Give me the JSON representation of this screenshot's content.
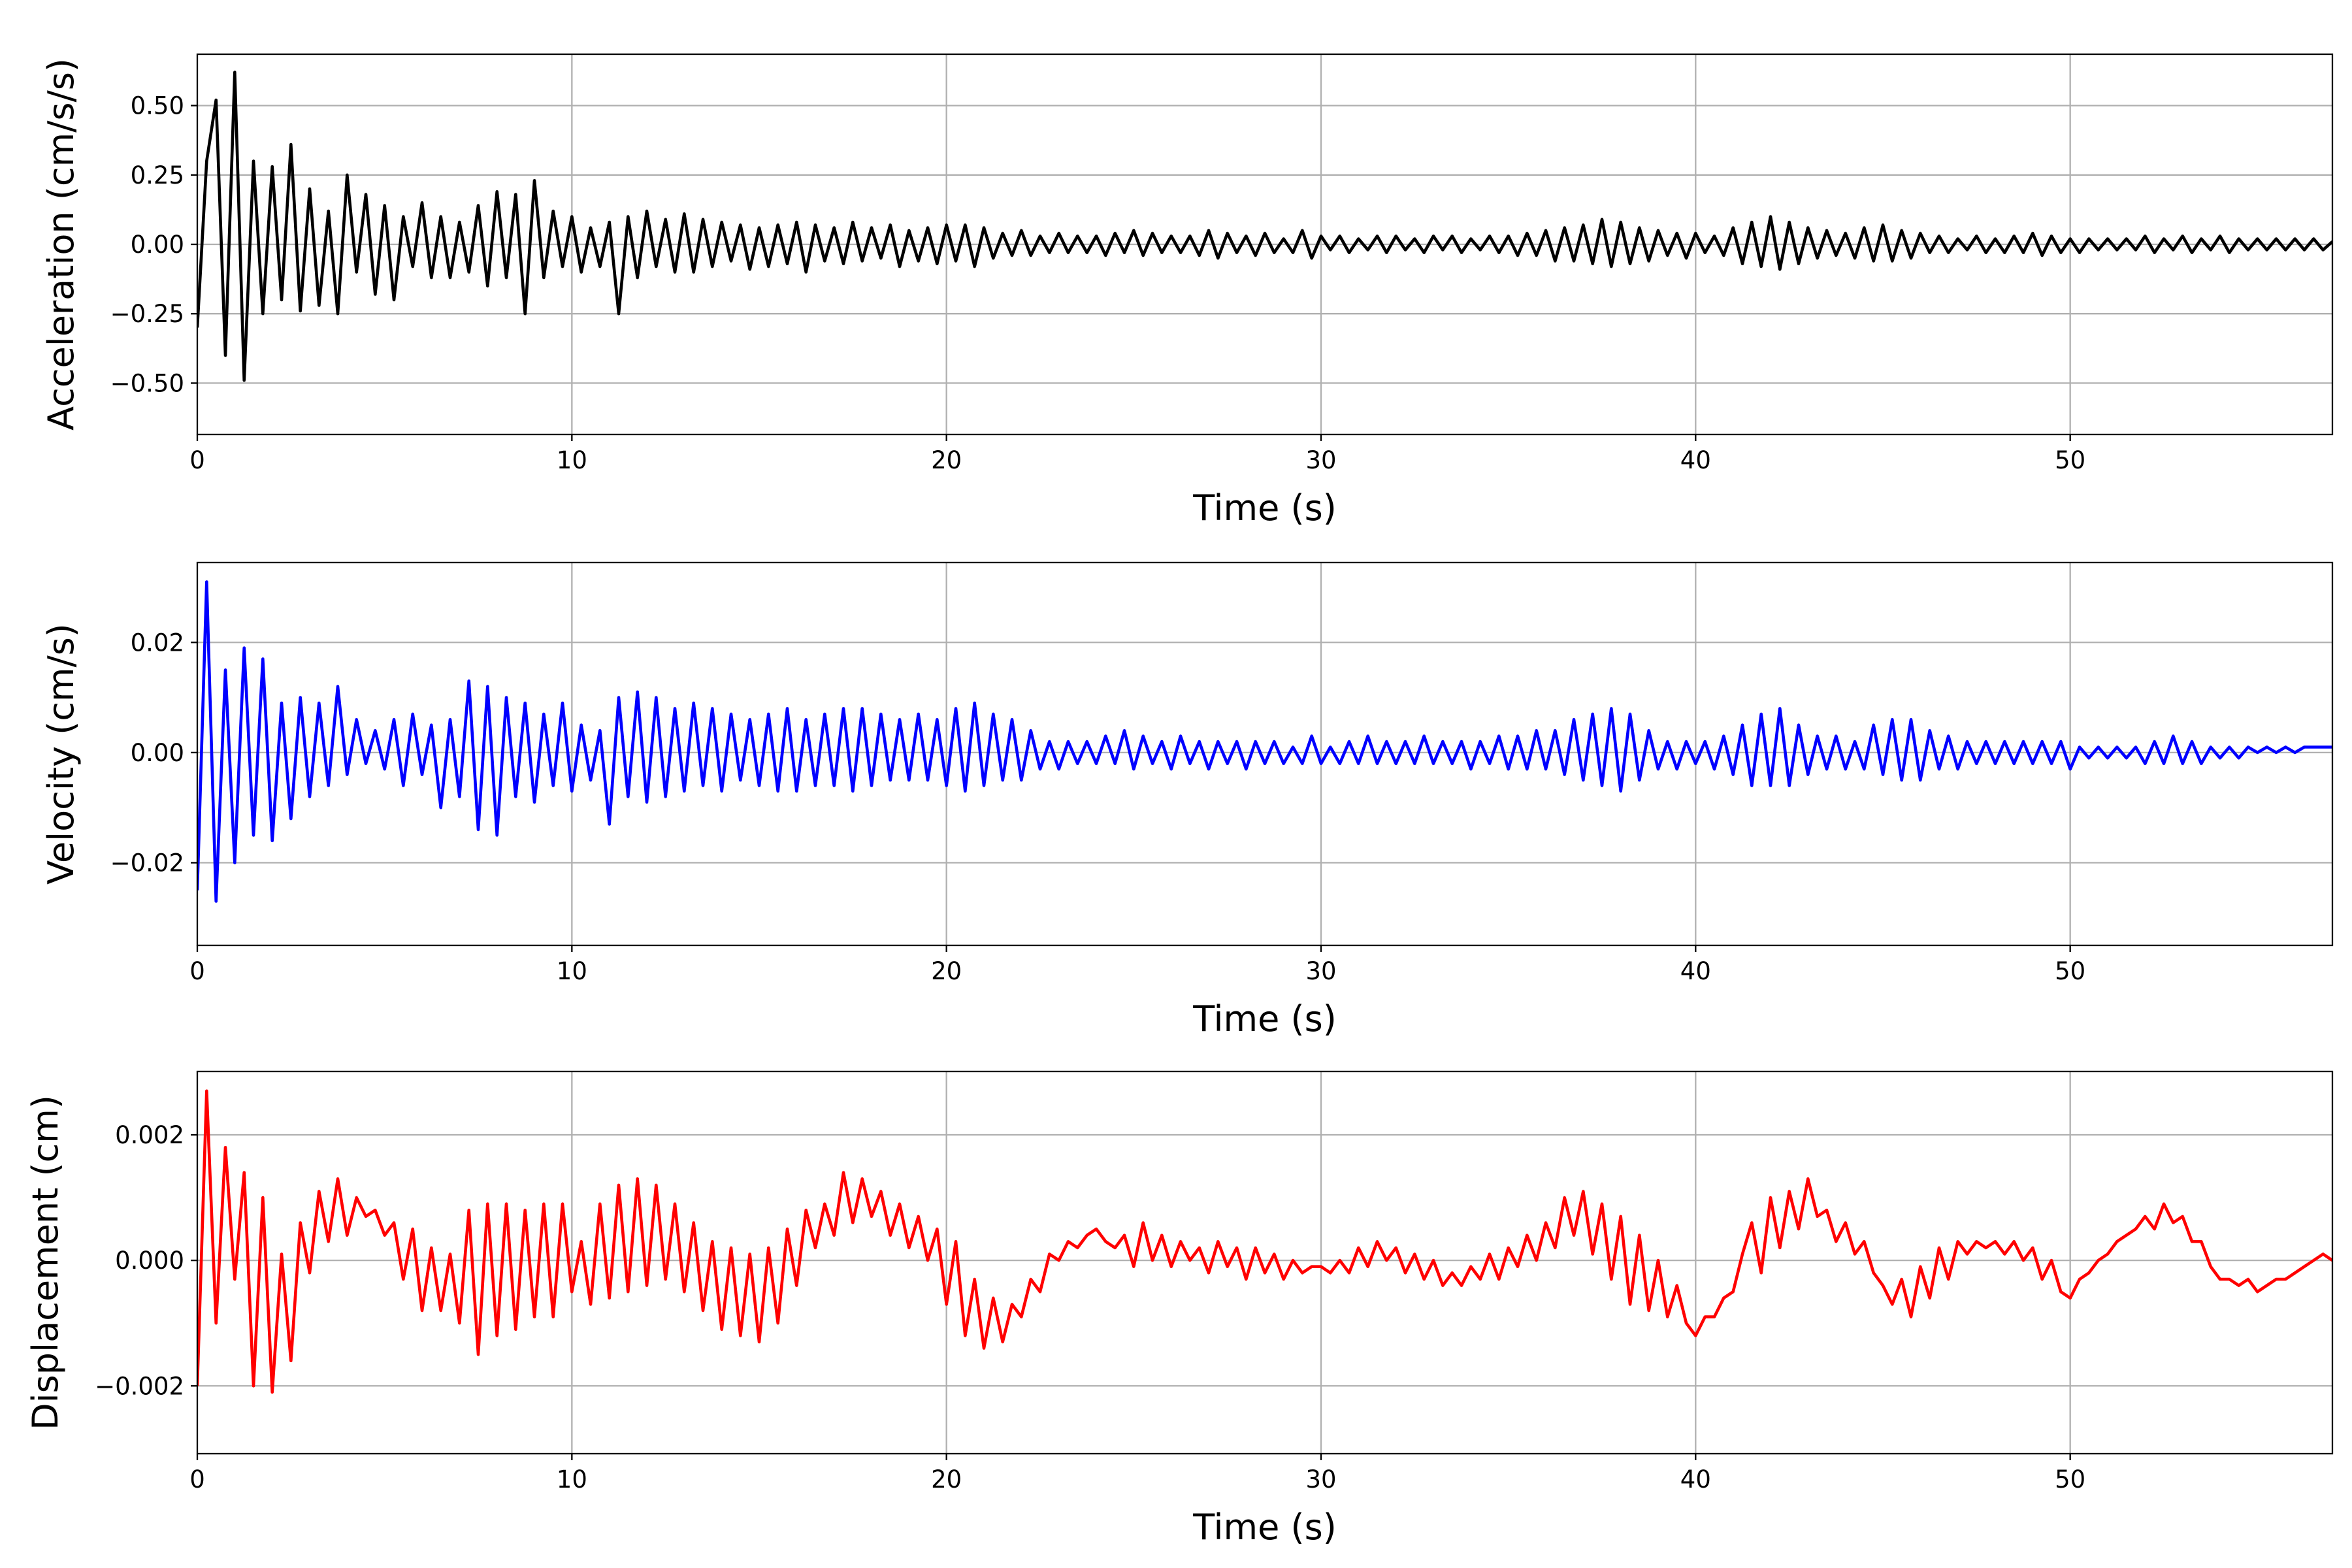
{
  "chart_data": [
    {
      "type": "line",
      "name": "acceleration",
      "xlabel": "Time (s)",
      "ylabel": "Acceleration (cm/s/s)",
      "xlim": [
        0,
        57
      ],
      "ylim": [
        -0.685,
        0.685
      ],
      "grid": true,
      "color": "#000000",
      "xticks": [
        0,
        10,
        20,
        30,
        40,
        50
      ],
      "xtick_labels": [
        "0",
        "10",
        "20",
        "30",
        "40",
        "50"
      ],
      "yticks": [
        -0.5,
        -0.25,
        0,
        0.25,
        0.5
      ],
      "ytick_labels": [
        "−0.50",
        "−0.25",
        "0.00",
        "0.25",
        "0.50"
      ],
      "dt": 0.25,
      "values": [
        -0.3,
        0.3,
        0.52,
        -0.4,
        0.62,
        -0.49,
        0.3,
        -0.25,
        0.28,
        -0.2,
        0.36,
        -0.24,
        0.2,
        -0.22,
        0.12,
        -0.25,
        0.25,
        -0.1,
        0.18,
        -0.18,
        0.14,
        -0.2,
        0.1,
        -0.08,
        0.15,
        -0.12,
        0.1,
        -0.12,
        0.08,
        -0.1,
        0.14,
        -0.15,
        0.19,
        -0.12,
        0.18,
        -0.25,
        0.23,
        -0.12,
        0.12,
        -0.08,
        0.1,
        -0.1,
        0.06,
        -0.08,
        0.08,
        -0.25,
        0.1,
        -0.12,
        0.12,
        -0.08,
        0.09,
        -0.1,
        0.11,
        -0.1,
        0.09,
        -0.08,
        0.08,
        -0.06,
        0.07,
        -0.09,
        0.06,
        -0.08,
        0.07,
        -0.07,
        0.08,
        -0.1,
        0.07,
        -0.06,
        0.06,
        -0.07,
        0.08,
        -0.06,
        0.06,
        -0.05,
        0.07,
        -0.08,
        0.05,
        -0.06,
        0.06,
        -0.07,
        0.07,
        -0.06,
        0.07,
        -0.08,
        0.06,
        -0.05,
        0.04,
        -0.04,
        0.05,
        -0.04,
        0.03,
        -0.03,
        0.04,
        -0.03,
        0.03,
        -0.03,
        0.03,
        -0.04,
        0.04,
        -0.03,
        0.05,
        -0.04,
        0.04,
        -0.03,
        0.03,
        -0.03,
        0.03,
        -0.04,
        0.05,
        -0.05,
        0.04,
        -0.03,
        0.03,
        -0.04,
        0.04,
        -0.03,
        0.02,
        -0.03,
        0.05,
        -0.05,
        0.03,
        -0.02,
        0.03,
        -0.03,
        0.02,
        -0.02,
        0.03,
        -0.03,
        0.03,
        -0.02,
        0.02,
        -0.03,
        0.03,
        -0.02,
        0.03,
        -0.03,
        0.02,
        -0.02,
        0.03,
        -0.03,
        0.03,
        -0.04,
        0.04,
        -0.04,
        0.05,
        -0.06,
        0.06,
        -0.06,
        0.07,
        -0.07,
        0.09,
        -0.08,
        0.08,
        -0.07,
        0.06,
        -0.06,
        0.05,
        -0.04,
        0.04,
        -0.05,
        0.04,
        -0.03,
        0.03,
        -0.04,
        0.06,
        -0.07,
        0.08,
        -0.08,
        0.1,
        -0.09,
        0.08,
        -0.07,
        0.06,
        -0.05,
        0.05,
        -0.04,
        0.04,
        -0.05,
        0.06,
        -0.06,
        0.07,
        -0.06,
        0.05,
        -0.05,
        0.04,
        -0.03,
        0.03,
        -0.03,
        0.02,
        -0.02,
        0.03,
        -0.03,
        0.02,
        -0.03,
        0.03,
        -0.03,
        0.04,
        -0.04,
        0.03,
        -0.03,
        0.02,
        -0.03,
        0.02,
        -0.02,
        0.02,
        -0.02,
        0.02,
        -0.02,
        0.03,
        -0.03,
        0.02,
        -0.02,
        0.03,
        -0.03,
        0.02,
        -0.02,
        0.03,
        -0.03,
        0.02,
        -0.02,
        0.02,
        -0.02,
        0.02,
        -0.02,
        0.02,
        -0.02,
        0.02,
        -0.02,
        0.01
      ]
    },
    {
      "type": "line",
      "name": "velocity",
      "xlabel": "Time (s)",
      "ylabel": "Velocity (cm/s)",
      "xlim": [
        0,
        57
      ],
      "ylim": [
        -0.035,
        0.0345
      ],
      "grid": true,
      "color": "#0000ff",
      "xticks": [
        0,
        10,
        20,
        30,
        40,
        50
      ],
      "xtick_labels": [
        "0",
        "10",
        "20",
        "30",
        "40",
        "50"
      ],
      "yticks": [
        -0.02,
        0,
        0.02
      ],
      "ytick_labels": [
        "−0.02",
        "0.00",
        "0.02"
      ],
      "dt": 0.25,
      "values": [
        -0.025,
        0.031,
        -0.027,
        0.015,
        -0.02,
        0.019,
        -0.015,
        0.017,
        -0.016,
        0.009,
        -0.012,
        0.01,
        -0.008,
        0.009,
        -0.006,
        0.012,
        -0.004,
        0.006,
        -0.002,
        0.004,
        -0.003,
        0.006,
        -0.006,
        0.007,
        -0.004,
        0.005,
        -0.01,
        0.006,
        -0.008,
        0.013,
        -0.014,
        0.012,
        -0.015,
        0.01,
        -0.008,
        0.009,
        -0.009,
        0.007,
        -0.006,
        0.009,
        -0.007,
        0.005,
        -0.005,
        0.004,
        -0.013,
        0.01,
        -0.008,
        0.011,
        -0.009,
        0.01,
        -0.008,
        0.008,
        -0.007,
        0.009,
        -0.006,
        0.008,
        -0.007,
        0.007,
        -0.005,
        0.006,
        -0.006,
        0.007,
        -0.007,
        0.008,
        -0.007,
        0.006,
        -0.006,
        0.007,
        -0.006,
        0.008,
        -0.007,
        0.008,
        -0.006,
        0.007,
        -0.005,
        0.006,
        -0.005,
        0.007,
        -0.005,
        0.006,
        -0.006,
        0.008,
        -0.007,
        0.009,
        -0.006,
        0.007,
        -0.005,
        0.006,
        -0.005,
        0.004,
        -0.003,
        0.002,
        -0.003,
        0.002,
        -0.002,
        0.002,
        -0.002,
        0.003,
        -0.002,
        0.004,
        -0.003,
        0.003,
        -0.002,
        0.002,
        -0.003,
        0.003,
        -0.002,
        0.002,
        -0.003,
        0.002,
        -0.002,
        0.002,
        -0.003,
        0.002,
        -0.002,
        0.002,
        -0.002,
        0.001,
        -0.002,
        0.003,
        -0.002,
        0.001,
        -0.002,
        0.002,
        -0.002,
        0.003,
        -0.002,
        0.002,
        -0.002,
        0.002,
        -0.002,
        0.003,
        -0.002,
        0.002,
        -0.002,
        0.002,
        -0.003,
        0.002,
        -0.002,
        0.003,
        -0.003,
        0.003,
        -0.003,
        0.004,
        -0.003,
        0.004,
        -0.004,
        0.006,
        -0.005,
        0.007,
        -0.006,
        0.008,
        -0.007,
        0.007,
        -0.005,
        0.004,
        -0.003,
        0.002,
        -0.003,
        0.002,
        -0.002,
        0.002,
        -0.003,
        0.003,
        -0.004,
        0.005,
        -0.006,
        0.007,
        -0.006,
        0.008,
        -0.006,
        0.005,
        -0.004,
        0.003,
        -0.003,
        0.003,
        -0.003,
        0.002,
        -0.003,
        0.005,
        -0.004,
        0.006,
        -0.005,
        0.006,
        -0.005,
        0.004,
        -0.003,
        0.003,
        -0.003,
        0.002,
        -0.002,
        0.002,
        -0.002,
        0.002,
        -0.002,
        0.002,
        -0.002,
        0.002,
        -0.002,
        0.002,
        -0.003,
        0.001,
        -0.001,
        0.001,
        -0.001,
        0.001,
        -0.001,
        0.001,
        -0.002,
        0.002,
        -0.002,
        0.003,
        -0.002,
        0.002,
        -0.002,
        0.001,
        -0.001,
        0.001,
        -0.001,
        0.001,
        0.0,
        0.001,
        0.0,
        0.001,
        0.0,
        0.001,
        0.001,
        0.001,
        0.001
      ]
    },
    {
      "type": "line",
      "name": "displacement",
      "xlabel": "Time (s)",
      "ylabel": "Displacement (cm)",
      "xlim": [
        0,
        57
      ],
      "ylim": [
        -0.00308,
        0.00301
      ],
      "grid": true,
      "color": "#ff0000",
      "xticks": [
        0,
        10,
        20,
        30,
        40,
        50
      ],
      "xtick_labels": [
        "0",
        "10",
        "20",
        "30",
        "40",
        "50"
      ],
      "yticks": [
        -0.002,
        0,
        0.002
      ],
      "ytick_labels": [
        "−0.002",
        "0.000",
        "0.002"
      ],
      "dt": 0.25,
      "values": [
        -0.002,
        0.0027,
        -0.001,
        0.0018,
        -0.0003,
        0.0014,
        -0.002,
        0.001,
        -0.0021,
        0.0001,
        -0.0016,
        0.0006,
        -0.0002,
        0.0011,
        0.0003,
        0.0013,
        0.0004,
        0.001,
        0.0007,
        0.0008,
        0.0004,
        0.0006,
        -0.0003,
        0.0005,
        -0.0008,
        0.0002,
        -0.0008,
        0.0001,
        -0.001,
        0.0008,
        -0.0015,
        0.0009,
        -0.0012,
        0.0009,
        -0.0011,
        0.0008,
        -0.0009,
        0.0009,
        -0.0009,
        0.0009,
        -0.0005,
        0.0003,
        -0.0007,
        0.0009,
        -0.0006,
        0.0012,
        -0.0005,
        0.0013,
        -0.0004,
        0.0012,
        -0.0003,
        0.0009,
        -0.0005,
        0.0006,
        -0.0008,
        0.0003,
        -0.0011,
        0.0002,
        -0.0012,
        0.0001,
        -0.0013,
        0.0002,
        -0.001,
        0.0005,
        -0.0004,
        0.0008,
        0.0002,
        0.0009,
        0.0004,
        0.0014,
        0.0006,
        0.0013,
        0.0007,
        0.0011,
        0.0004,
        0.0009,
        0.0002,
        0.0007,
        0.0,
        0.0005,
        -0.0007,
        0.0003,
        -0.0012,
        -0.0003,
        -0.0014,
        -0.0006,
        -0.0013,
        -0.0007,
        -0.0009,
        -0.0003,
        -0.0005,
        0.0001,
        0.0,
        0.0003,
        0.0002,
        0.0004,
        0.0005,
        0.0003,
        0.0002,
        0.0004,
        -0.0001,
        0.0006,
        0.0,
        0.0004,
        -0.0001,
        0.0003,
        0.0,
        0.0002,
        -0.0002,
        0.0003,
        -0.0001,
        0.0002,
        -0.0003,
        0.0002,
        -0.0002,
        0.0001,
        -0.0003,
        0.0,
        -0.0002,
        -0.0001,
        -0.0001,
        -0.0002,
        0.0,
        -0.0002,
        0.0002,
        -0.0001,
        0.0003,
        0.0,
        0.0002,
        -0.0002,
        0.0001,
        -0.0003,
        0.0,
        -0.0004,
        -0.0002,
        -0.0004,
        -0.0001,
        -0.0003,
        0.0001,
        -0.0003,
        0.0002,
        -0.0001,
        0.0004,
        0.0,
        0.0006,
        0.0002,
        0.001,
        0.0004,
        0.0011,
        0.0001,
        0.0009,
        -0.0003,
        0.0007,
        -0.0007,
        0.0004,
        -0.0008,
        0.0,
        -0.0009,
        -0.0004,
        -0.001,
        -0.0012,
        -0.0009,
        -0.0009,
        -0.0006,
        -0.0005,
        0.0001,
        0.0006,
        -0.0002,
        0.001,
        0.0002,
        0.0011,
        0.0005,
        0.0013,
        0.0007,
        0.0008,
        0.0003,
        0.0006,
        0.0001,
        0.0003,
        -0.0002,
        -0.0004,
        -0.0007,
        -0.0003,
        -0.0009,
        -0.0001,
        -0.0006,
        0.0002,
        -0.0003,
        0.0003,
        0.0001,
        0.0003,
        0.0002,
        0.0003,
        0.0001,
        0.0003,
        0.0,
        0.0002,
        -0.0003,
        0.0,
        -0.0005,
        -0.0006,
        -0.0003,
        -0.0002,
        0.0,
        0.0001,
        0.0003,
        0.0004,
        0.0005,
        0.0007,
        0.0005,
        0.0009,
        0.0006,
        0.0007,
        0.0003,
        0.0003,
        -0.0001,
        -0.0003,
        -0.0003,
        -0.0004,
        -0.0003,
        -0.0005,
        -0.0004,
        -0.0003,
        -0.0003,
        -0.0002,
        -0.0001,
        0.0,
        0.0001,
        0.0
      ]
    }
  ]
}
